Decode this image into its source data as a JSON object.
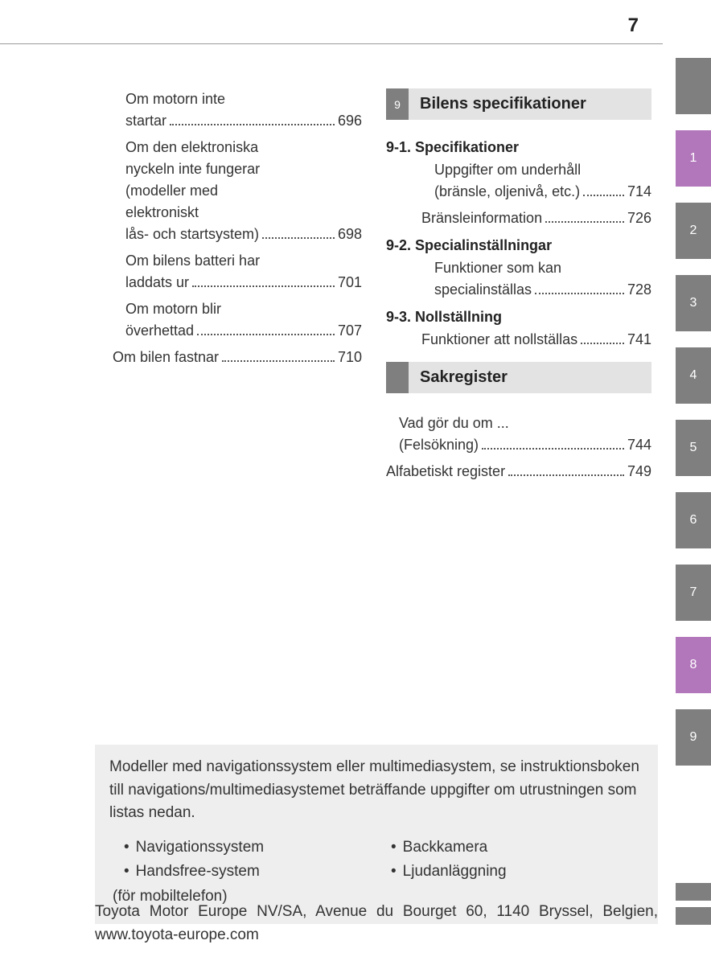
{
  "page_number": "7",
  "left_entries": [
    {
      "lines": [
        "Om motorn inte"
      ],
      "last": "startar",
      "page": "696",
      "indent": true
    },
    {
      "lines": [
        "Om den elektroniska",
        "nyckeln inte fungerar",
        "(modeller med",
        "elektroniskt"
      ],
      "last": "lås- och startsystem)",
      "page": "698",
      "indent": true
    },
    {
      "lines": [
        "Om bilens batteri har"
      ],
      "last": "laddats ur",
      "page": "701",
      "indent": true
    },
    {
      "lines": [
        "Om motorn blir"
      ],
      "last": "överhettad",
      "page": "707",
      "indent": true
    },
    {
      "lines": [],
      "last": "Om bilen fastnar",
      "page": "710",
      "indent": false
    }
  ],
  "section9": {
    "num": "9",
    "title": "Bilens specifikationer"
  },
  "subs": [
    {
      "heading": "9-1. Specifikationer",
      "entries": [
        {
          "lines": [
            "Uppgifter om underhåll"
          ],
          "last": "(bränsle, oljenivå, etc.)",
          "page": "714",
          "indent": true
        },
        {
          "lines": [],
          "last": "Bränsleinformation",
          "page": "726",
          "indent": false
        }
      ]
    },
    {
      "heading": "9-2. Specialinställningar",
      "entries": [
        {
          "lines": [
            "Funktioner som kan"
          ],
          "last": "specialinställas",
          "page": "728",
          "indent": true
        }
      ]
    },
    {
      "heading": "9-3. Nollställning",
      "entries": [
        {
          "lines": [],
          "last": "Funktioner att nollställas",
          "page": "741",
          "indent": false
        }
      ]
    }
  ],
  "index_section": {
    "title": "Sakregister"
  },
  "index_entries": [
    {
      "lines": [
        "Vad gör du om ..."
      ],
      "last": "(Felsökning)",
      "page": "744",
      "indent": true
    },
    {
      "lines": [],
      "last": "Alfabetiskt register",
      "page": "749",
      "indent": false
    }
  ],
  "tabs": [
    {
      "label": "",
      "color": "#7f7f7f"
    },
    {
      "label": "1",
      "color": "#b276bb"
    },
    {
      "label": "2",
      "color": "#7f7f7f"
    },
    {
      "label": "3",
      "color": "#7f7f7f"
    },
    {
      "label": "4",
      "color": "#7f7f7f"
    },
    {
      "label": "5",
      "color": "#7f7f7f"
    },
    {
      "label": "6",
      "color": "#7f7f7f"
    },
    {
      "label": "7",
      "color": "#7f7f7f"
    },
    {
      "label": "8",
      "color": "#b276bb"
    },
    {
      "label": "9",
      "color": "#7f7f7f"
    }
  ],
  "bottom_tabs": [
    {
      "color": "#7f7f7f"
    },
    {
      "color": "#7f7f7f"
    }
  ],
  "note": {
    "text": "Modeller med navigationssystem eller multimediasystem, se instruktionsboken till navigations/multimediasystemet beträffande uppgifter om utrustningen som listas nedan.",
    "left": [
      "Navigationssystem",
      "Handsfree-system"
    ],
    "left_sub": "(för mobiltelefon)",
    "right": [
      "Backkamera",
      "Ljudanläggning"
    ]
  },
  "footer": "Toyota Motor Europe NV/SA, Avenue du Bourget 60, 1140 Bryssel, Belgien, www.toyota-europe.com"
}
